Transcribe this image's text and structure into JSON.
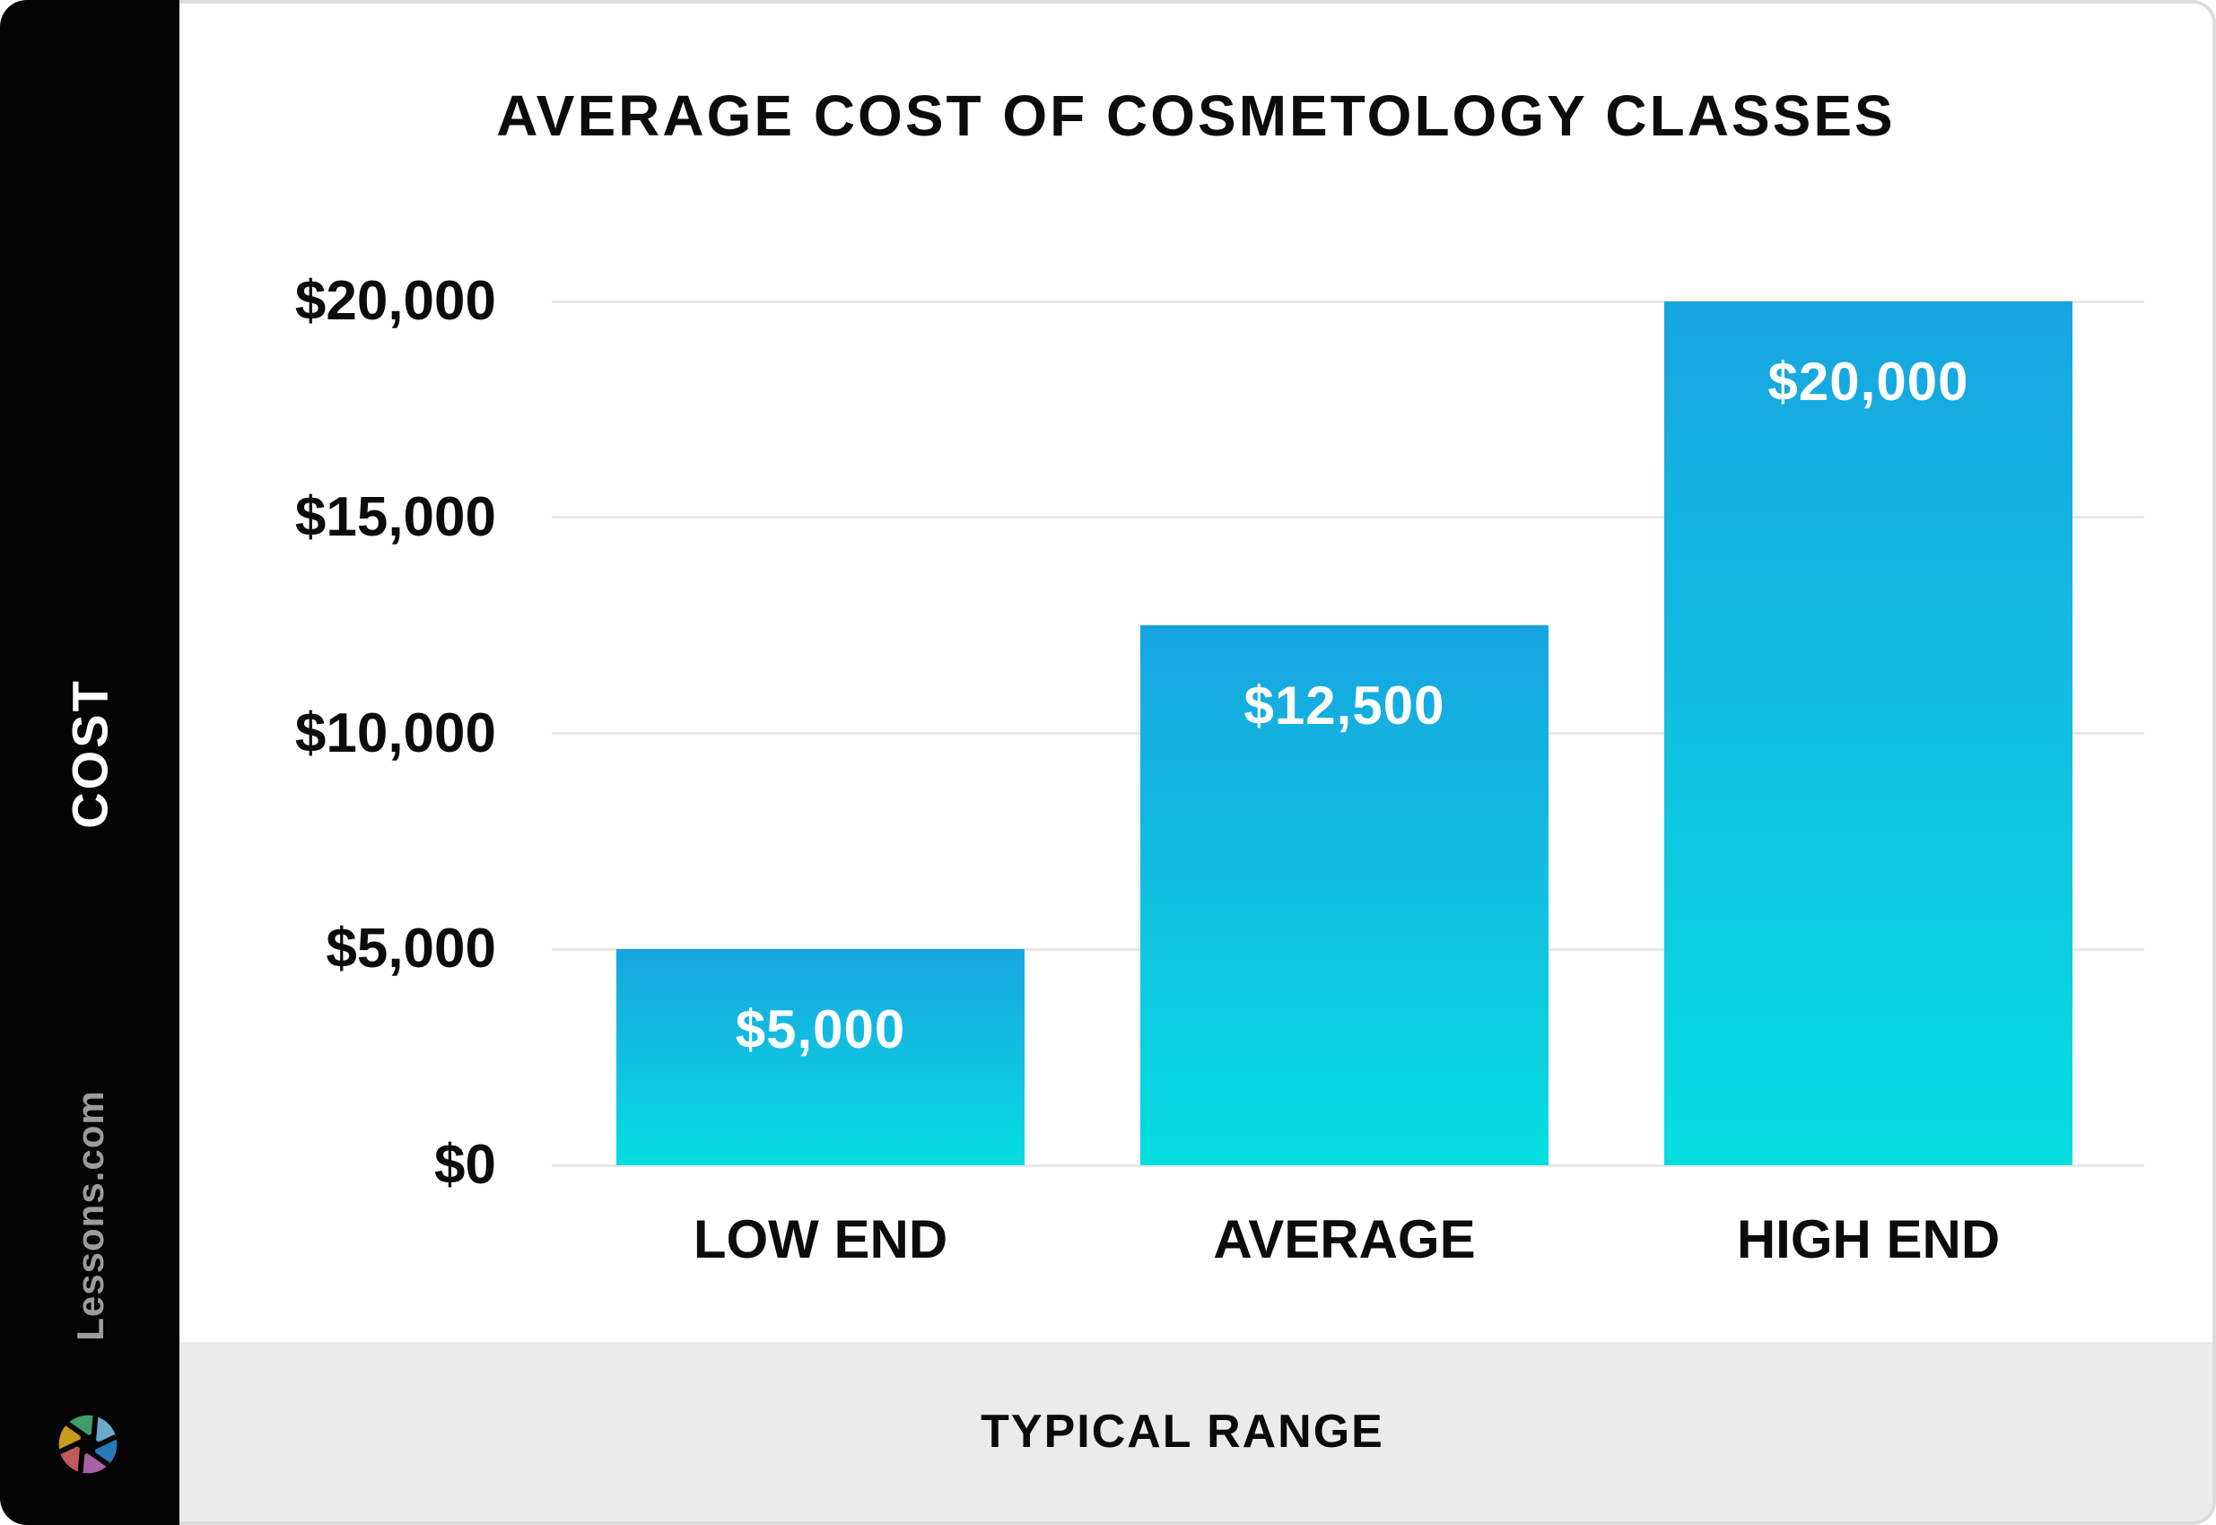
{
  "header": {
    "title": "AVERAGE COST OF COSMETOLOGY CLASSES"
  },
  "sidebar": {
    "y_axis_title": "COST",
    "brand": "Lessons.com",
    "logo": "aperture-icon",
    "logo_colors": [
      "#3d9c68",
      "#69aac6",
      "#2879b8",
      "#a961a6",
      "#c05a5a",
      "#c6991f"
    ]
  },
  "footer": {
    "x_axis_title": "TYPICAL RANGE"
  },
  "colors": {
    "bar_gradient_top": "#17a5e0",
    "bar_gradient_bottom": "#05dee1",
    "gridline": "#e7e7e7",
    "band_background": "#ebebeb",
    "sidebar_background": "#040404",
    "text": "#0c0c0c",
    "brand_text": "#9c9c9c"
  },
  "chart_data": {
    "type": "bar",
    "title": "AVERAGE COST OF COSMETOLOGY CLASSES",
    "xlabel": "TYPICAL RANGE",
    "ylabel": "COST",
    "categories": [
      "LOW END",
      "AVERAGE",
      "HIGH END"
    ],
    "values": [
      5000,
      12500,
      20000
    ],
    "value_labels": [
      "$5,000",
      "$12,500",
      "$20,000"
    ],
    "y_ticks": [
      {
        "label": "$0",
        "value": 0
      },
      {
        "label": "$5,000",
        "value": 5000
      },
      {
        "label": "$10,000",
        "value": 10000
      },
      {
        "label": "$15,000",
        "value": 15000
      },
      {
        "label": "$20,000",
        "value": 20000
      }
    ],
    "ylim": [
      0,
      20000
    ],
    "grid": true,
    "legend": "none"
  }
}
